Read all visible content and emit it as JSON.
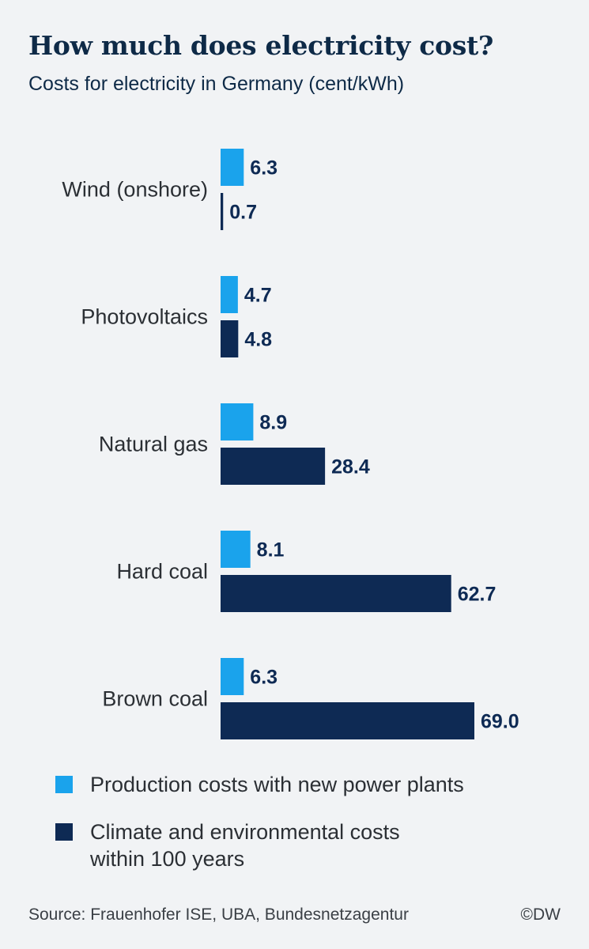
{
  "header": {
    "title": "How much does electricity cost?",
    "subtitle": "Costs for electricity in Germany (cent/kWh)"
  },
  "colors": {
    "production": "#1aa3ec",
    "climate": "#0e2a54",
    "category_text": "#2b2f34",
    "value_text": "#0e2a54"
  },
  "chart_data": {
    "type": "bar",
    "orientation": "horizontal",
    "title": "How much does electricity cost?",
    "subtitle": "Costs for electricity in Germany (cent/kWh)",
    "categories": [
      "Wind (onshore)",
      "Photovoltaics",
      "Natural gas",
      "Hard coal",
      "Brown coal"
    ],
    "series": [
      {
        "name": "Production costs with new power plants",
        "values": [
          6.3,
          4.7,
          8.9,
          8.1,
          6.3
        ]
      },
      {
        "name": "Climate and environmental costs within 100 years",
        "values": [
          0.7,
          4.8,
          28.4,
          62.7,
          69.0
        ]
      }
    ],
    "value_labels": [
      [
        "6.3",
        "4.7",
        "8.9",
        "8.1",
        "6.3"
      ],
      [
        "0.7",
        "4.8",
        "28.4",
        "62.7",
        "69.0"
      ]
    ],
    "xlim": [
      0,
      69.0
    ],
    "grid": false,
    "legend_position": "bottom"
  },
  "legend": [
    {
      "label_lines": [
        "Production costs with new power plants"
      ]
    },
    {
      "label_lines": [
        "Climate and environmental costs",
        "within 100 years"
      ]
    }
  ],
  "footer": {
    "source": "Source: Frauenhofer ISE, UBA, Bundesnetzagentur",
    "credit": "©DW"
  }
}
